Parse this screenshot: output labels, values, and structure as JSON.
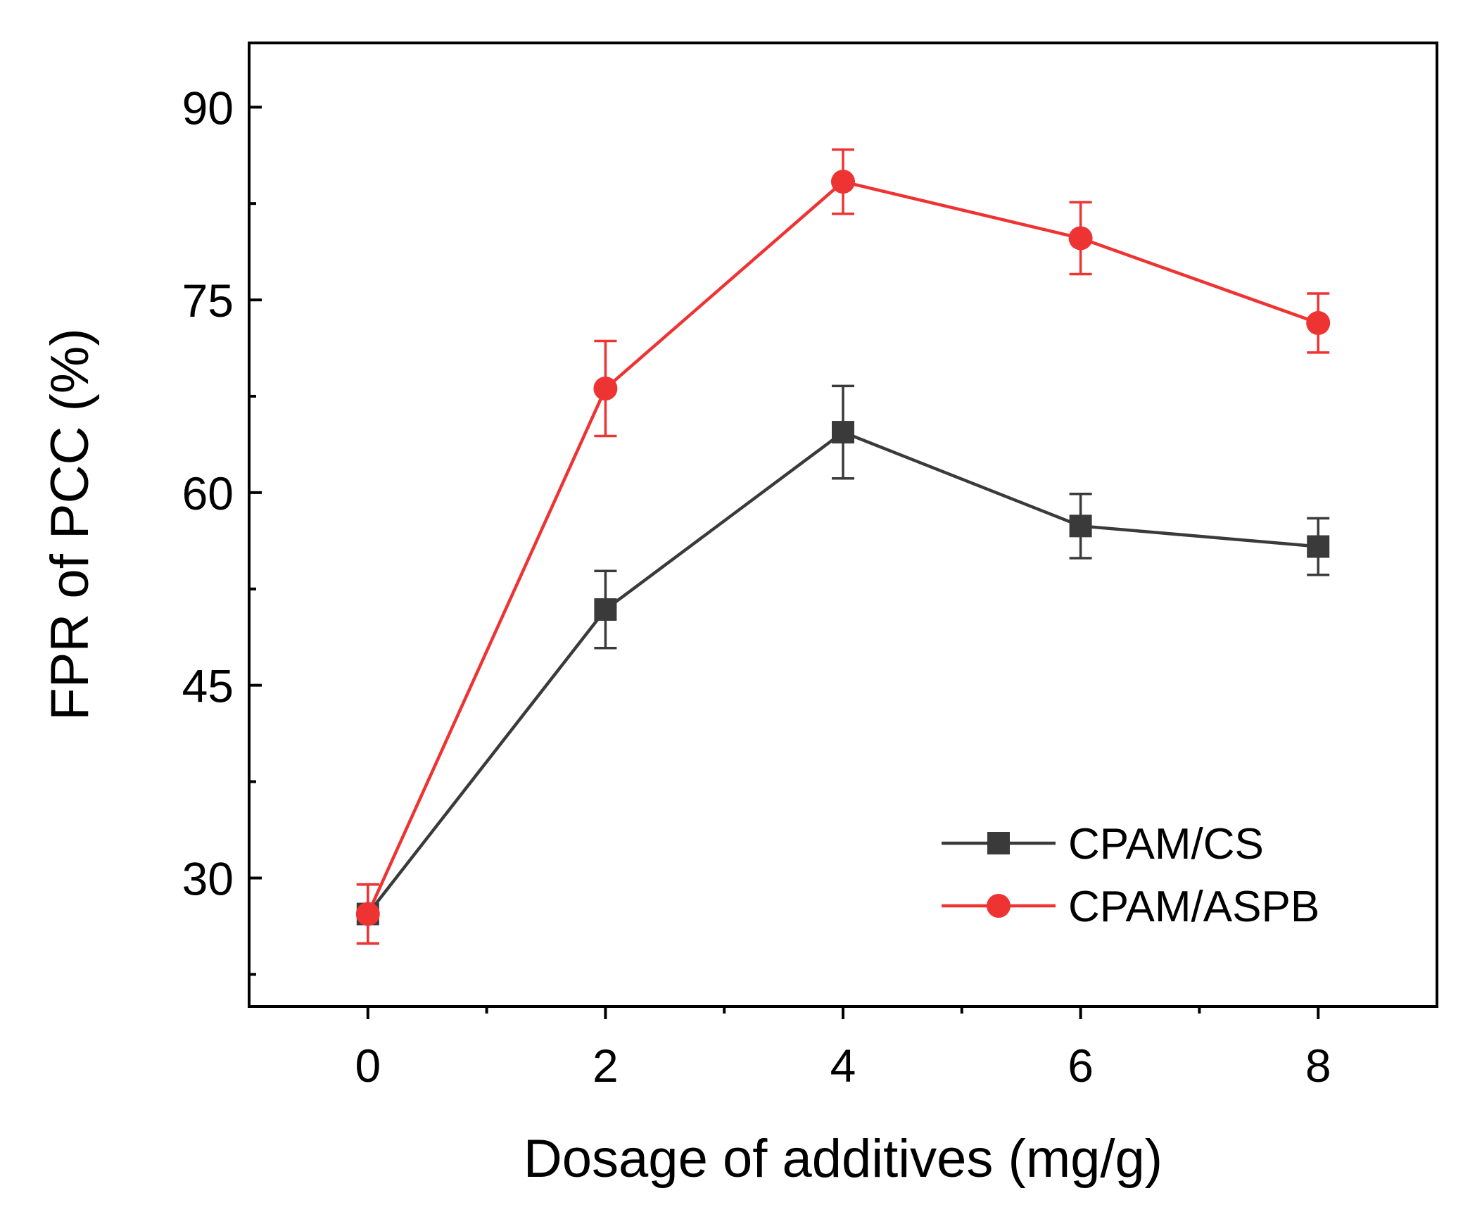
{
  "chart_data": {
    "type": "line",
    "title": "",
    "xlabel": "Dosage of additives (mg/g)",
    "ylabel": "FPR of PCC (%)",
    "xlim": [
      -1,
      9
    ],
    "ylim": [
      20,
      95
    ],
    "xticks": [
      0,
      2,
      4,
      6,
      8
    ],
    "xtick_labels": [
      "0",
      "2",
      "4",
      "6",
      "8"
    ],
    "xminor": [
      1,
      3,
      5,
      7
    ],
    "yticks": [
      30,
      45,
      60,
      75,
      90
    ],
    "ytick_labels": [
      "30",
      "45",
      "60",
      "75",
      "90"
    ],
    "yminor": [
      22.5,
      37.5,
      52.5,
      67.5,
      82.5
    ],
    "grid": false,
    "legend_position": "bottom-right",
    "x": [
      0,
      2,
      4,
      6,
      8
    ],
    "series": [
      {
        "name": "CPAM/CS",
        "color": "#3a3a3a",
        "marker": "square",
        "values": [
          27.2,
          50.9,
          64.7,
          57.4,
          55.8
        ],
        "errors": [
          2.3,
          3.0,
          3.6,
          2.5,
          2.2
        ]
      },
      {
        "name": "CPAM/ASPB",
        "color": "#ee3333",
        "marker": "circle",
        "values": [
          27.2,
          68.1,
          84.2,
          79.8,
          73.2
        ],
        "errors": [
          2.3,
          3.7,
          2.5,
          2.8,
          2.3
        ]
      }
    ]
  }
}
